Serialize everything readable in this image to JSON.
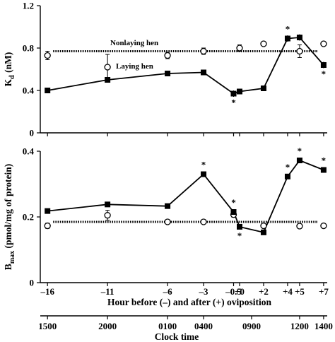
{
  "chart_data": [
    {
      "type": "line",
      "panel": "top",
      "ylabel": "K_d (nM)",
      "ylabel_base": "K",
      "ylabel_sub": "d",
      "ylabel_rest": " (nM)",
      "ylim": [
        0,
        1.2
      ],
      "yticks": [
        "0",
        "0.4",
        "0.8",
        "1.2"
      ],
      "ytick_values": [
        0,
        0.4,
        0.8,
        1.2
      ],
      "x": [
        -16,
        -11,
        -6,
        -3,
        -0.5,
        0,
        2,
        4,
        5,
        7
      ],
      "series": [
        {
          "name": "Laying hen",
          "marker": "filled-square",
          "style": "solid",
          "values": [
            0.4,
            0.5,
            0.56,
            0.57,
            0.37,
            0.39,
            0.42,
            0.89,
            0.9,
            0.64
          ],
          "errors": [
            0.02,
            0.02,
            0.02,
            0.02,
            0.03,
            0.02,
            0.02,
            0.03,
            0.03,
            0.03
          ],
          "significant": [
            false,
            false,
            false,
            false,
            true,
            false,
            false,
            true,
            false,
            true
          ]
        },
        {
          "name": "Nonlaying hen",
          "marker": "open-circle",
          "style": "dotted",
          "mean_line": 0.77,
          "values": [
            0.73,
            0.62,
            0.73,
            0.77,
            null,
            0.8,
            0.84,
            null,
            0.77,
            0.84
          ],
          "errors": [
            0.04,
            0.12,
            0.03,
            0.03,
            null,
            0.03,
            0.02,
            null,
            0.06,
            0.02
          ]
        }
      ],
      "annotations": [
        "Nonlaying hen",
        "Laying hen"
      ]
    },
    {
      "type": "line",
      "panel": "bottom",
      "ylabel": "B_max (pmol/mg of protein)",
      "ylabel_base": "B",
      "ylabel_sub": "max",
      "ylabel_rest": " (pmol/mg of protein)",
      "ylim": [
        0,
        0.4
      ],
      "yticks": [
        "0",
        "0.2",
        "0.4"
      ],
      "ytick_values": [
        0,
        0.2,
        0.4
      ],
      "x": [
        -16,
        -11,
        -6,
        -3,
        -0.5,
        0,
        2,
        4,
        5,
        7
      ],
      "series": [
        {
          "name": "Laying hen",
          "marker": "filled-square",
          "style": "solid",
          "values": [
            0.218,
            0.238,
            0.233,
            0.33,
            0.215,
            0.17,
            0.153,
            0.323,
            0.372,
            0.343
          ],
          "errors": [
            0.005,
            0.005,
            0.005,
            0.008,
            0.006,
            0.005,
            0.005,
            0.006,
            0.007,
            0.007
          ],
          "significant": [
            false,
            false,
            false,
            true,
            true,
            true,
            false,
            true,
            true,
            true
          ]
        },
        {
          "name": "Nonlaying hen",
          "marker": "open-circle",
          "style": "dotted",
          "mean_line": 0.185,
          "values": [
            0.173,
            0.205,
            0.185,
            0.185,
            0.207,
            null,
            0.173,
            null,
            0.172,
            0.173
          ],
          "errors": [
            0.008,
            0.015,
            0.006,
            0.006,
            0.008,
            null,
            0.006,
            null,
            0.007,
            0.006
          ]
        }
      ]
    }
  ],
  "x_axis": {
    "label": "Hour before (–) and after (+) oviposition",
    "ticks": [
      "–16",
      "–11",
      "–6",
      "–3",
      "–0.5",
      "+0",
      "+2",
      "+4",
      "+5",
      "+7"
    ],
    "tick_values": [
      -16,
      -11,
      -6,
      -3,
      -0.5,
      0,
      2,
      4,
      5,
      7
    ]
  },
  "clock_axis": {
    "label": "Clock time",
    "ticks": [
      "1500",
      "2000",
      "0100",
      "0400",
      "0900",
      "1200",
      "1400"
    ],
    "tick_values": [
      -16,
      -11,
      -6,
      -3,
      1,
      5,
      7
    ]
  },
  "significance_mark": "*"
}
